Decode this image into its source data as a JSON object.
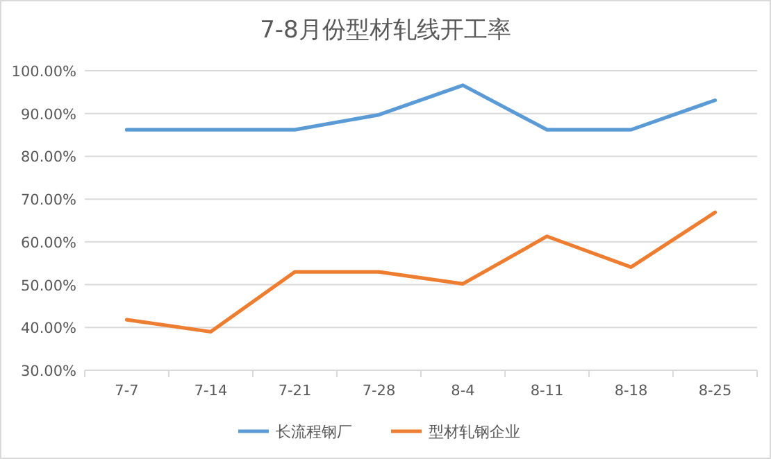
{
  "chart_data": {
    "type": "line",
    "title": "7-8月份型材轧线开工率",
    "categories": [
      "7-7",
      "7-14",
      "7-21",
      "7-28",
      "8-4",
      "8-11",
      "8-18",
      "8-25"
    ],
    "series": [
      {
        "name": "长流程钢厂",
        "color": "#5b9bd5",
        "values": [
          86.2,
          86.2,
          86.2,
          89.7,
          96.6,
          86.2,
          86.2,
          93.1
        ]
      },
      {
        "name": "型材轧钢企业",
        "color": "#ed7d31",
        "values": [
          41.8,
          39.0,
          53.0,
          53.0,
          50.2,
          61.3,
          54.1,
          66.9
        ]
      }
    ],
    "ylim": [
      30,
      100
    ],
    "yticks": [
      {
        "value": 30,
        "label": "30.00%"
      },
      {
        "value": 40,
        "label": "40.00%"
      },
      {
        "value": 50,
        "label": "50.00%"
      },
      {
        "value": 60,
        "label": "60.00%"
      },
      {
        "value": 70,
        "label": "70.00%"
      },
      {
        "value": 80,
        "label": "80.00%"
      },
      {
        "value": 90,
        "label": "90.00%"
      },
      {
        "value": 100,
        "label": "100.00%"
      }
    ],
    "grid": "y",
    "legend": "bottom",
    "marker": "none",
    "line_style": "solid"
  }
}
